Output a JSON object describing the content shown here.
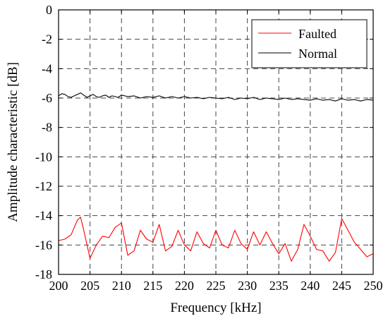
{
  "chart_data": {
    "type": "line",
    "xlabel": "Frequency [kHz]",
    "ylabel": "Amplitude characteristic [dB]",
    "xlim": [
      200,
      250
    ],
    "ylim": [
      -18,
      0
    ],
    "xticks": [
      200,
      205,
      210,
      215,
      220,
      225,
      230,
      235,
      240,
      245,
      250
    ],
    "yticks": [
      0,
      -2,
      -4,
      -6,
      -8,
      -10,
      -12,
      -14,
      -16,
      -18
    ],
    "grid": true,
    "legend_position": "top-right",
    "series": [
      {
        "name": "Faulted",
        "color": "#ff0000",
        "x": [
          200,
          201,
          202,
          203,
          203.5,
          204,
          205,
          206,
          207,
          208,
          209,
          210,
          211,
          212,
          213,
          214,
          215,
          216,
          217,
          218,
          219,
          220,
          221,
          222,
          223,
          224,
          225,
          226,
          227,
          228,
          229,
          230,
          231,
          232,
          233,
          234,
          235,
          236,
          237,
          238,
          239,
          240,
          241,
          242,
          243,
          244,
          245,
          246,
          247,
          248,
          249,
          250
        ],
        "y": [
          -15.7,
          -15.6,
          -15.3,
          -14.3,
          -14.1,
          -15.0,
          -16.9,
          -16.0,
          -15.4,
          -15.5,
          -14.8,
          -14.5,
          -16.7,
          -16.4,
          -15.0,
          -15.6,
          -15.8,
          -14.6,
          -16.4,
          -16.1,
          -15.0,
          -16.0,
          -16.4,
          -15.1,
          -15.9,
          -16.2,
          -15.0,
          -16.0,
          -16.2,
          -15.0,
          -15.9,
          -16.3,
          -15.1,
          -16.0,
          -15.1,
          -15.9,
          -16.6,
          -15.9,
          -17.1,
          -16.3,
          -14.6,
          -15.4,
          -16.3,
          -16.4,
          -17.1,
          -16.5,
          -14.2,
          -15.0,
          -15.8,
          -16.3,
          -16.8,
          -16.6
        ]
      },
      {
        "name": "Normal",
        "color": "#000000",
        "x": [
          200,
          200.5,
          201,
          201.5,
          202,
          202.5,
          203,
          203.5,
          204,
          204.5,
          205,
          205.5,
          206,
          206.5,
          207,
          207.5,
          208,
          208.5,
          209,
          209.5,
          210,
          211,
          212,
          213,
          214,
          215,
          216,
          217,
          218,
          219,
          220,
          221,
          222,
          223,
          224,
          225,
          226,
          227,
          228,
          229,
          230,
          231,
          232,
          233,
          234,
          235,
          236,
          237,
          238,
          239,
          240,
          241,
          242,
          243,
          244,
          245,
          246,
          247,
          248,
          249,
          250
        ],
        "y": [
          -5.85,
          -5.7,
          -5.75,
          -5.9,
          -5.95,
          -5.85,
          -5.75,
          -5.65,
          -5.8,
          -5.95,
          -5.85,
          -5.75,
          -5.9,
          -5.95,
          -5.85,
          -5.8,
          -5.95,
          -5.85,
          -5.9,
          -5.95,
          -5.8,
          -5.9,
          -5.85,
          -6.0,
          -5.9,
          -5.95,
          -5.85,
          -6.0,
          -5.9,
          -6.0,
          -5.9,
          -6.0,
          -5.95,
          -6.05,
          -5.95,
          -6.0,
          -6.05,
          -5.95,
          -6.1,
          -6.0,
          -6.05,
          -5.95,
          -6.1,
          -6.0,
          -6.05,
          -6.1,
          -6.0,
          -6.1,
          -6.05,
          -6.1,
          -6.15,
          -6.05,
          -6.15,
          -6.1,
          -6.2,
          -6.05,
          -6.15,
          -6.1,
          -6.2,
          -6.1,
          -6.15
        ]
      }
    ]
  }
}
